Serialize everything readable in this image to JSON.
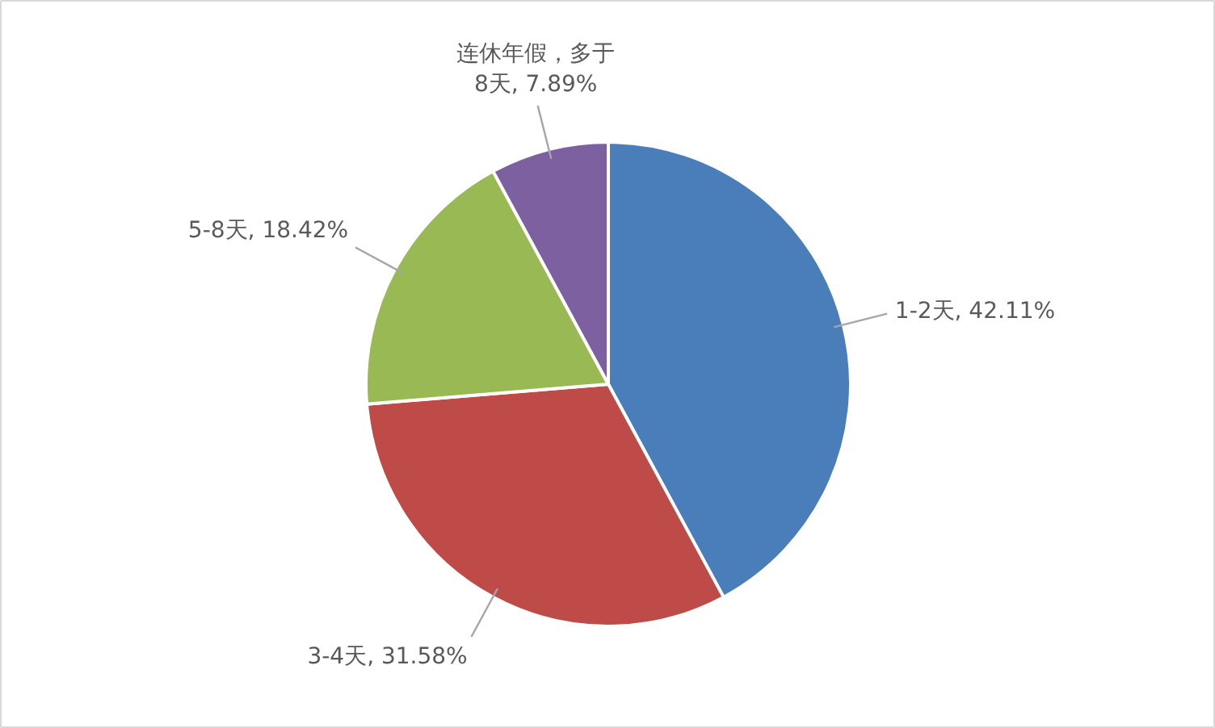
{
  "chart_data": {
    "type": "pie",
    "categories": [
      "1-2天",
      "3-4天",
      "5-8天",
      "连休年假，多于8天"
    ],
    "values": [
      42.11,
      31.58,
      18.42,
      7.89
    ],
    "colors": [
      "#4a7ebb",
      "#be4b48",
      "#98b954",
      "#7d60a0"
    ],
    "value_labels": [
      "42.11%",
      "31.58%",
      "18.42%",
      "7.89%"
    ]
  }
}
